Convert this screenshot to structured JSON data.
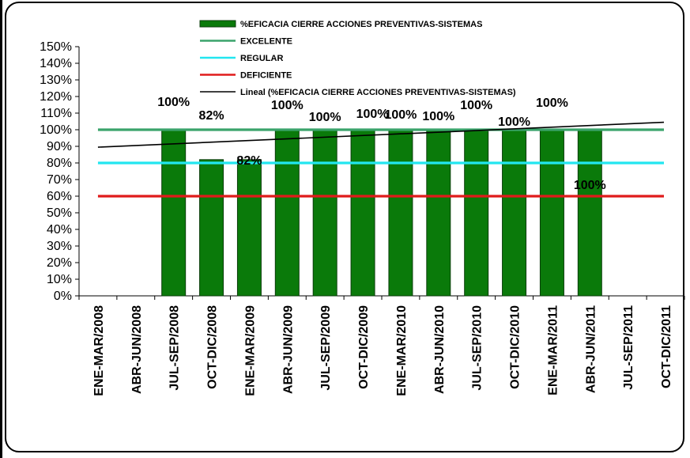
{
  "chart_data": {
    "type": "bar",
    "categories": [
      "ENE-MAR/2008",
      "ABR-JUN/2008",
      "JUL-SEP/2008",
      "OCT-DIC/2008",
      "ENE-MAR/2009",
      "ABR-JUN/2009",
      "JUL-SEP/2009",
      "OCT-DIC/2009",
      "ENE-MAR/2010",
      "ABR-JUN/2010",
      "JUL-SEP/2010",
      "OCT-DIC/2010",
      "ENE-MAR/2011",
      "ABR-JUN/2011",
      "JUL-SEP/2011",
      "OCT-DIC/2011"
    ],
    "series": [
      {
        "name": "%EFICACIA CIERRE ACCIONES PREVENTIVAS-SISTEMAS",
        "kind": "bar",
        "color": "#0a7a0a",
        "values": [
          null,
          null,
          100,
          82,
          82,
          100,
          100,
          100,
          100,
          100,
          100,
          100,
          100,
          100,
          null,
          null
        ]
      },
      {
        "name": "EXCELENTE",
        "kind": "line",
        "color": "#3aa36b",
        "values": [
          100,
          100,
          100,
          100,
          100,
          100,
          100,
          100,
          100,
          100,
          100,
          100,
          100,
          100,
          100,
          100
        ]
      },
      {
        "name": "REGULAR",
        "kind": "line",
        "color": "#22e6f0",
        "values": [
          80,
          80,
          80,
          80,
          80,
          80,
          80,
          80,
          80,
          80,
          80,
          80,
          80,
          80,
          80,
          80
        ]
      },
      {
        "name": "DEFICIENTE",
        "kind": "line",
        "color": "#e01b1b",
        "values": [
          60,
          60,
          60,
          60,
          60,
          60,
          60,
          60,
          60,
          60,
          60,
          60,
          60,
          60,
          60,
          60
        ]
      },
      {
        "name": "Lineal (%EFICACIA CIERRE ACCIONES PREVENTIVAS-SISTEMAS)",
        "kind": "trend",
        "color": "#000000",
        "values": [
          89.5,
          90.5,
          91.5,
          92.5,
          93.5,
          94.5,
          95.5,
          96.5,
          97.5,
          98.5,
          99.5,
          100.5,
          101.5,
          102.5,
          103.5,
          104.5
        ]
      }
    ],
    "data_labels": [
      {
        "category": "JUL-SEP/2008",
        "text": "100%"
      },
      {
        "category": "OCT-DIC/2008",
        "text": "82%"
      },
      {
        "category": "ENE-MAR/2009",
        "text": "82%"
      },
      {
        "category": "ABR-JUN/2009",
        "text": "100%"
      },
      {
        "category": "JUL-SEP/2009",
        "text": "100%"
      },
      {
        "category": "OCT-DIC/2009",
        "text": "100%"
      },
      {
        "category": "ENE-MAR/2010",
        "text": "100%"
      },
      {
        "category": "ABR-JUN/2010",
        "text": "100%"
      },
      {
        "category": "JUL-SEP/2010",
        "text": "100%"
      },
      {
        "category": "OCT-DIC/2010",
        "text": "100%"
      },
      {
        "category": "ENE-MAR/2011",
        "text": "100%"
      },
      {
        "category": "ABR-JUN/2011",
        "text": "100%"
      }
    ],
    "y_ticks": [
      "0%",
      "10%",
      "20%",
      "30%",
      "40%",
      "50%",
      "60%",
      "70%",
      "80%",
      "90%",
      "100%",
      "110%",
      "120%",
      "130%",
      "140%",
      "150%"
    ],
    "ylim": [
      0,
      150
    ],
    "legend_position": "top"
  }
}
